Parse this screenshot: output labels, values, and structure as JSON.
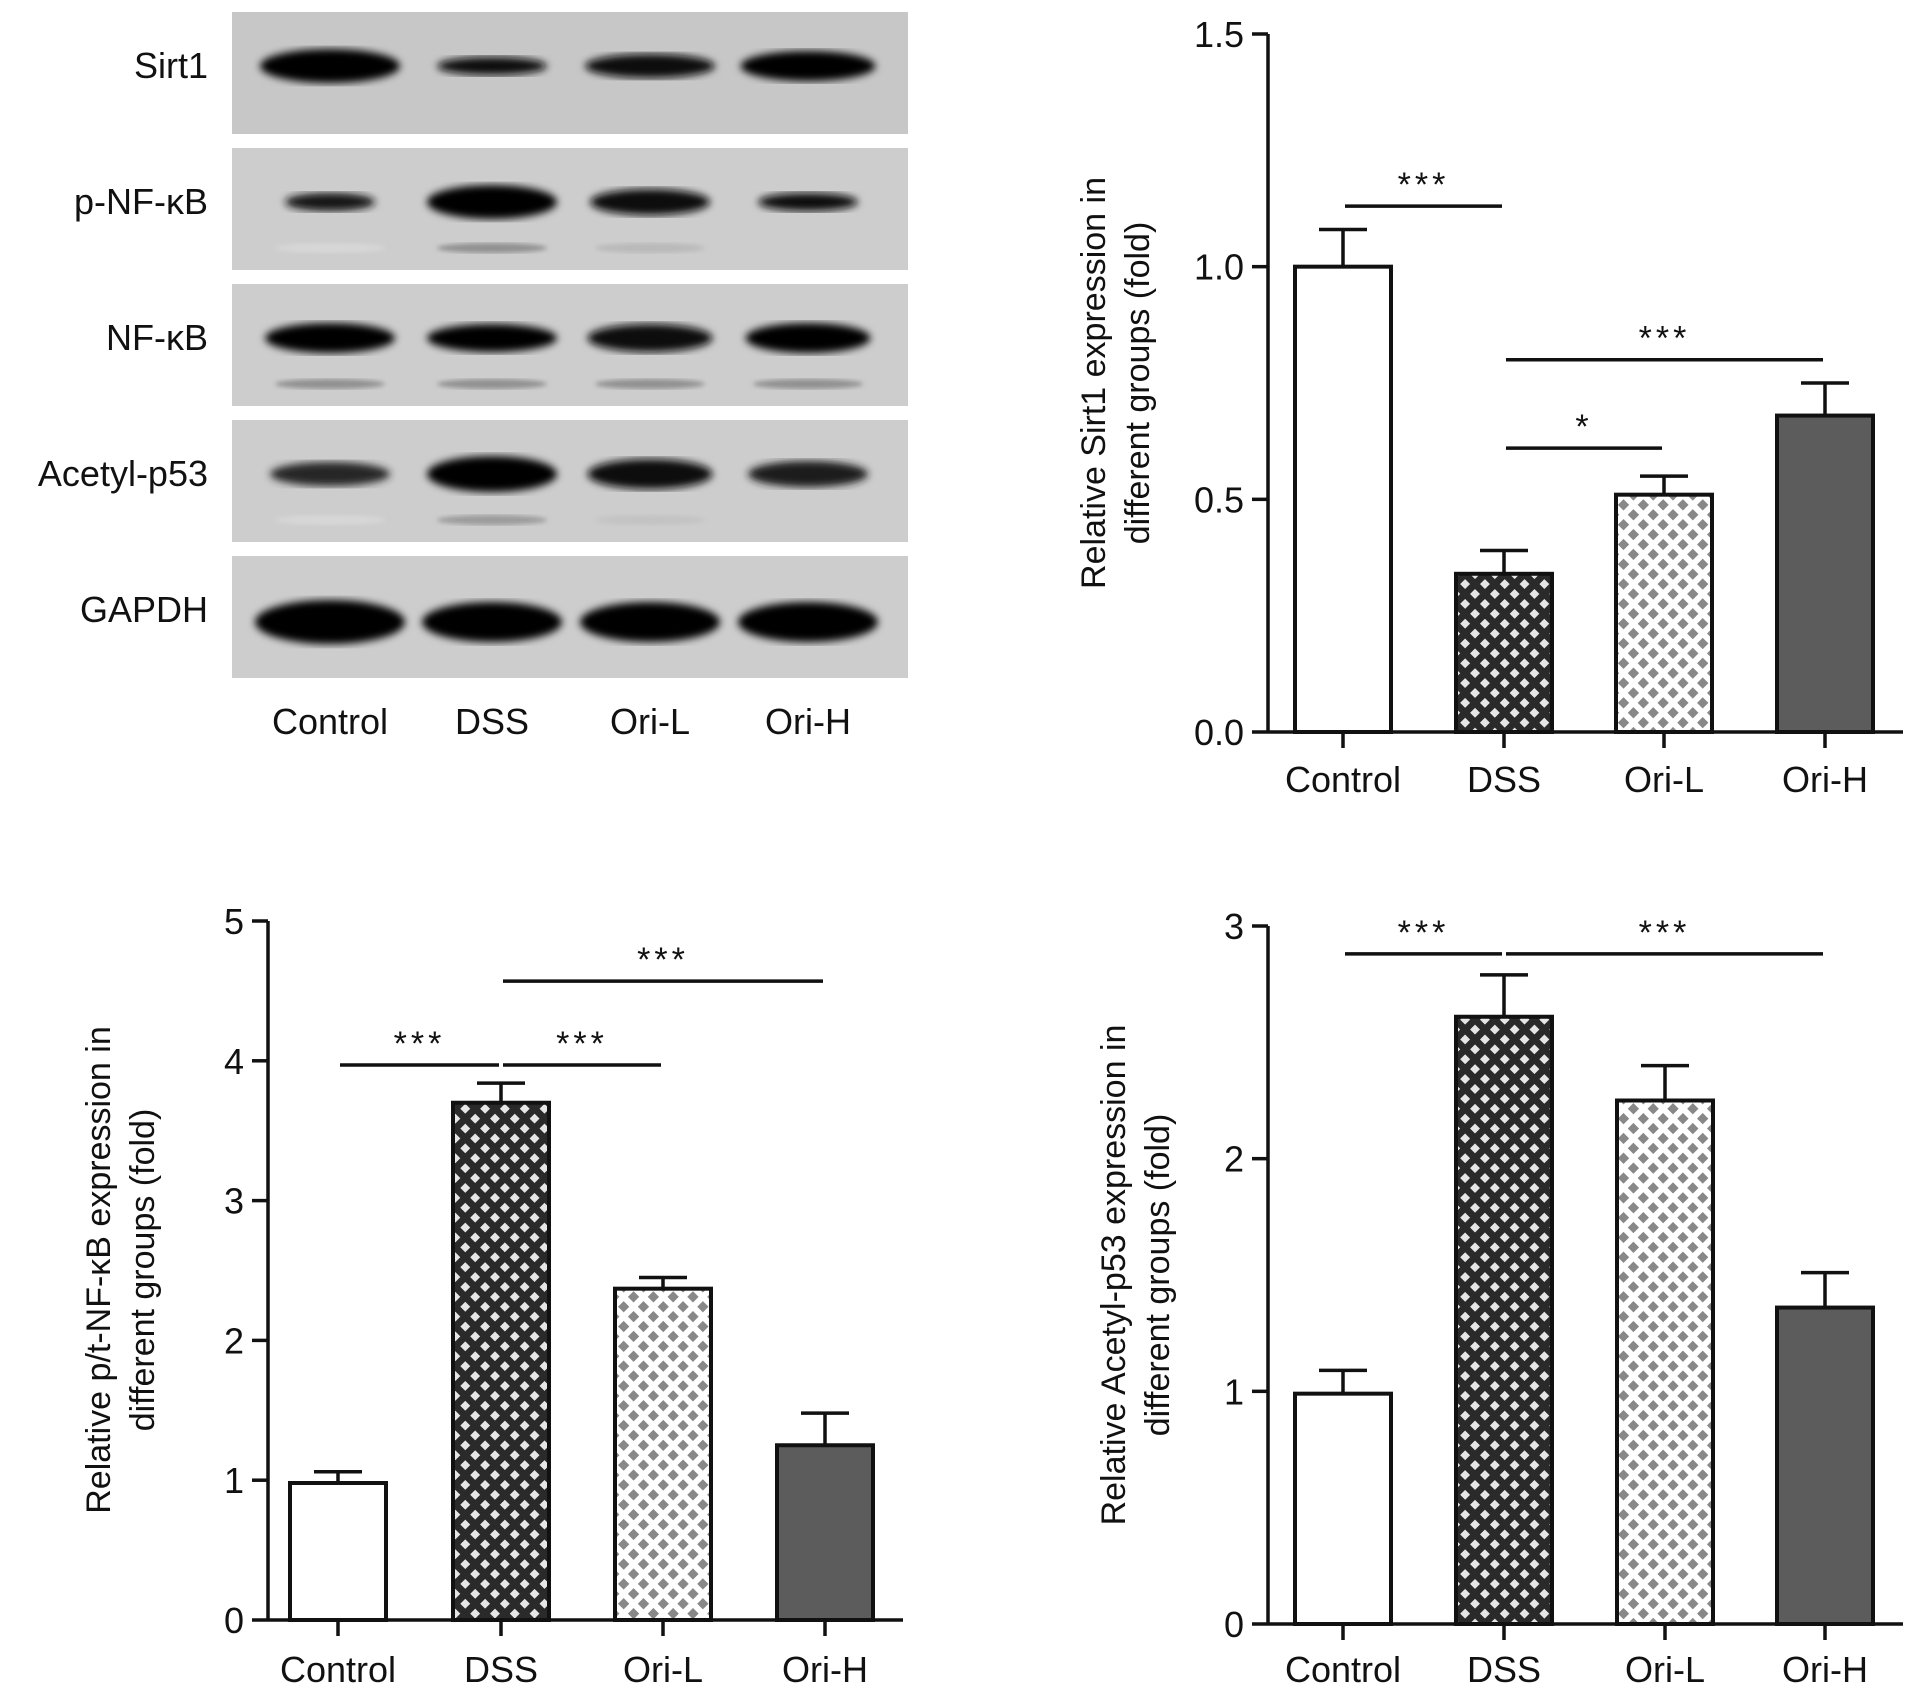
{
  "blot": {
    "rows": [
      "Sirt1",
      "p-NF-κB",
      "NF-κB",
      "Acetyl-p53",
      "GAPDH"
    ],
    "lanes": [
      "Control",
      "DSS",
      "Ori-L",
      "Ori-H"
    ]
  },
  "chart_data": [
    {
      "type": "bar",
      "panel": "sirt1",
      "categories": [
        "Control",
        "DSS",
        "Ori-L",
        "Ori-H"
      ],
      "values": [
        1.0,
        0.34,
        0.51,
        0.68
      ],
      "errors": [
        0.08,
        0.05,
        0.04,
        0.07
      ],
      "ylabel_lines": [
        "Relative Sirt1 expression in",
        "different groups (fold)"
      ],
      "ylim": [
        0,
        1.5
      ],
      "yticks": [
        "0.0",
        "0.5",
        "1.0",
        "1.5"
      ],
      "ytick_values": [
        0,
        0.5,
        1.0,
        1.5
      ],
      "fills": [
        "white",
        "dense-check",
        "sparse-check",
        "solid"
      ],
      "significance": [
        {
          "from": 0,
          "to": 1,
          "y": 1.13,
          "label": "***"
        },
        {
          "from": 1,
          "to": 3,
          "y": 0.8,
          "label": "***"
        },
        {
          "from": 1,
          "to": 2,
          "y": 0.61,
          "label": "*"
        }
      ]
    },
    {
      "type": "bar",
      "panel": "pnfkb",
      "categories": [
        "Control",
        "DSS",
        "Ori-L",
        "Ori-H"
      ],
      "values": [
        0.98,
        3.7,
        2.37,
        1.25
      ],
      "errors": [
        0.08,
        0.14,
        0.08,
        0.23
      ],
      "ylabel_lines": [
        "Relative p/t-NF-κB expression in",
        "different groups (fold)"
      ],
      "ylim": [
        0,
        5
      ],
      "yticks": [
        "0",
        "1",
        "2",
        "3",
        "4",
        "5"
      ],
      "ytick_values": [
        0,
        1,
        2,
        3,
        4,
        5
      ],
      "fills": [
        "white",
        "dense-check",
        "sparse-check",
        "solid"
      ],
      "significance": [
        {
          "from": 0,
          "to": 1,
          "y": 3.97,
          "label": "***"
        },
        {
          "from": 1,
          "to": 2,
          "y": 3.97,
          "label": "***"
        },
        {
          "from": 1,
          "to": 3,
          "y": 4.57,
          "label": "***"
        }
      ]
    },
    {
      "type": "bar",
      "panel": "acetylp53",
      "categories": [
        "Control",
        "DSS",
        "Ori-L",
        "Ori-H"
      ],
      "values": [
        0.99,
        2.61,
        2.25,
        1.36
      ],
      "errors": [
        0.1,
        0.18,
        0.15,
        0.15
      ],
      "ylabel_lines": [
        "Relative Acetyl-p53 expression in",
        "different groups (fold)"
      ],
      "ylim": [
        0,
        3
      ],
      "yticks": [
        "0",
        "1",
        "2",
        "3"
      ],
      "ytick_values": [
        0,
        1,
        2,
        3
      ],
      "fills": [
        "white",
        "dense-check",
        "sparse-check",
        "solid"
      ],
      "significance": [
        {
          "from": 0,
          "to": 1,
          "y": 2.88,
          "label": "***"
        },
        {
          "from": 1,
          "to": 3,
          "y": 2.88,
          "label": "***"
        }
      ]
    }
  ]
}
